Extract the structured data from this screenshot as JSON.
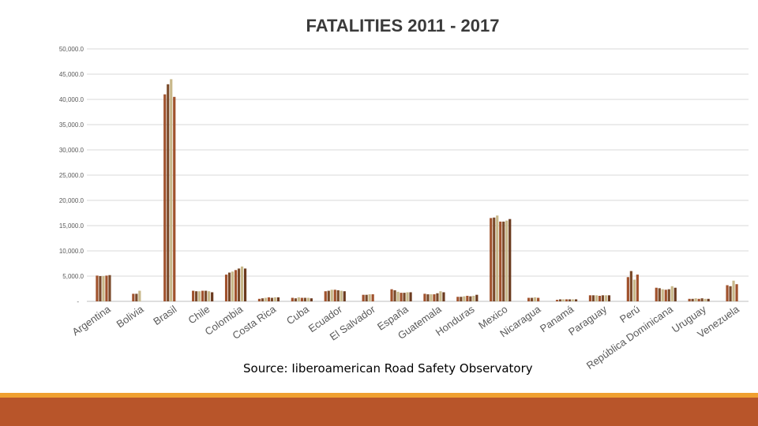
{
  "chart_data": {
    "type": "bar",
    "title": "FATALITIES 2011 - 2017",
    "xlabel": "",
    "ylabel": "",
    "ylim": [
      0,
      50000
    ],
    "grid": true,
    "y_ticks": [
      {
        "value": 0,
        "label": "-"
      },
      {
        "value": 5000,
        "label": "5,000.0"
      },
      {
        "value": 10000,
        "label": "10,000.0"
      },
      {
        "value": 15000,
        "label": "15,000.0"
      },
      {
        "value": 20000,
        "label": "20,000.0"
      },
      {
        "value": 25000,
        "label": "25,000.0"
      },
      {
        "value": 30000,
        "label": "30,000.0"
      },
      {
        "value": 35000,
        "label": "35,000.0"
      },
      {
        "value": 40000,
        "label": "40,000.0"
      },
      {
        "value": 45000,
        "label": "45,000.0"
      },
      {
        "value": 50000,
        "label": "50,000.0"
      }
    ],
    "categories": [
      "Argentina",
      "Bolivia",
      "Brasil",
      "Chile",
      "Colombia",
      "Costa Rica",
      "Cuba",
      "Ecuador",
      "El Salvador",
      "España",
      "Guatemala",
      "Honduras",
      "Mexico",
      "Nicaragua",
      "Panamá",
      "Paraguay",
      "Perú",
      "República Dominicana",
      "Uruguay",
      "Venezuela"
    ],
    "series_colors": [
      "#a0522d",
      "#7a4a2a",
      "#c8b88a",
      "#a0522d",
      "#7a4a2a",
      "#c8b88a",
      "#6b3a1f"
    ],
    "series_values": [
      [
        5100,
        5000,
        5000,
        5100,
        5200,
        null,
        null
      ],
      [
        1500,
        1500,
        2100,
        null,
        null,
        null,
        null
      ],
      [
        41000,
        43000,
        44000,
        40500,
        null,
        null,
        null
      ],
      [
        2100,
        2000,
        2000,
        2100,
        2100,
        2000,
        1800
      ],
      [
        5300,
        5700,
        5900,
        6200,
        6500,
        6900,
        6500
      ],
      [
        500,
        600,
        700,
        800,
        700,
        800,
        800
      ],
      [
        700,
        600,
        800,
        700,
        700,
        700,
        600
      ],
      [
        2000,
        2100,
        2300,
        2300,
        2200,
        2100,
        2000
      ],
      [
        1300,
        1300,
        1400,
        1400,
        null,
        null,
        null
      ],
      [
        2400,
        2200,
        1900,
        1700,
        1700,
        1800,
        1800
      ],
      [
        1500,
        1400,
        1400,
        1400,
        1600,
        2000,
        1800
      ],
      [
        900,
        900,
        1000,
        1100,
        1000,
        1100,
        1300
      ],
      [
        16500,
        16600,
        17000,
        15800,
        15800,
        16000,
        16300
      ],
      [
        700,
        700,
        800,
        700,
        null,
        null,
        null
      ],
      [
        300,
        400,
        400,
        400,
        400,
        400,
        400
      ],
      [
        1200,
        1200,
        1200,
        1100,
        1200,
        1200,
        1200
      ],
      [
        4800,
        6000,
        4300,
        5300,
        null,
        null,
        null
      ],
      [
        2700,
        2600,
        2400,
        2300,
        2400,
        3000,
        2700
      ],
      [
        500,
        500,
        600,
        500,
        600,
        500,
        500
      ],
      [
        3200,
        3000,
        4100,
        3400,
        null,
        null,
        null
      ]
    ]
  },
  "source": "Source: Iiberoamerican Road Safety Observatory"
}
